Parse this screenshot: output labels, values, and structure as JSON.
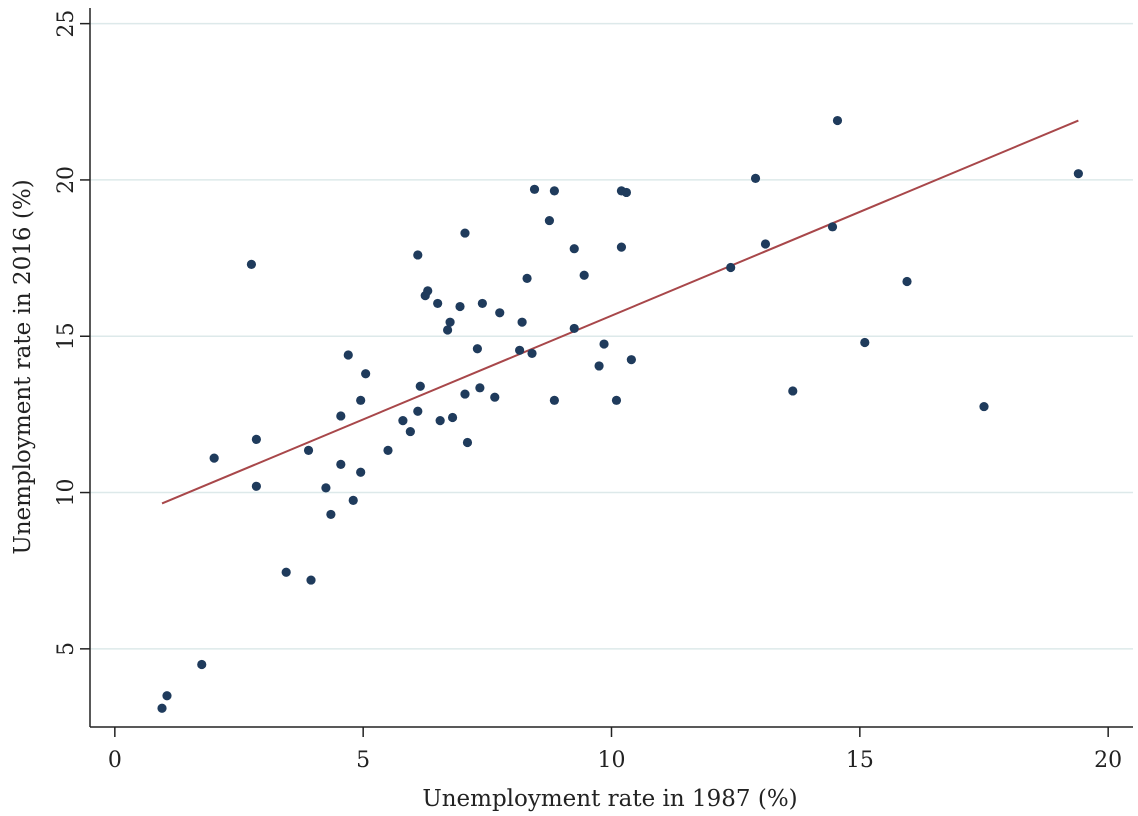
{
  "chart_data": {
    "type": "scatter",
    "xlabel": "Unemployment rate in 1987 (%)",
    "ylabel": "Unemployment rate in 2016 (%)",
    "xlim": [
      -0.5,
      20.5
    ],
    "ylim": [
      2.5,
      25.5
    ],
    "xticks": [
      0,
      5,
      10,
      15,
      20
    ],
    "yticks": [
      5,
      10,
      15,
      20,
      25
    ],
    "grid": "horizontal",
    "colors": {
      "points": "#1f3b5c",
      "fit_line": "#a8474a",
      "grid": "#dde9ea",
      "axis": "#222222"
    },
    "points": [
      [
        0.95,
        3.1
      ],
      [
        1.05,
        3.5
      ],
      [
        1.75,
        4.5
      ],
      [
        2.0,
        11.1
      ],
      [
        2.75,
        17.3
      ],
      [
        2.85,
        11.7
      ],
      [
        2.85,
        10.2
      ],
      [
        3.45,
        7.45
      ],
      [
        3.95,
        7.2
      ],
      [
        3.9,
        11.35
      ],
      [
        4.25,
        10.15
      ],
      [
        4.35,
        9.3
      ],
      [
        4.55,
        12.45
      ],
      [
        4.55,
        10.9
      ],
      [
        4.7,
        14.4
      ],
      [
        4.8,
        9.75
      ],
      [
        4.95,
        12.95
      ],
      [
        4.95,
        10.65
      ],
      [
        5.05,
        13.8
      ],
      [
        5.5,
        11.35
      ],
      [
        5.8,
        12.3
      ],
      [
        5.95,
        11.95
      ],
      [
        6.1,
        12.6
      ],
      [
        6.1,
        17.6
      ],
      [
        6.15,
        13.4
      ],
      [
        6.25,
        16.3
      ],
      [
        6.3,
        16.45
      ],
      [
        6.5,
        16.05
      ],
      [
        6.55,
        12.3
      ],
      [
        6.7,
        15.2
      ],
      [
        6.75,
        15.45
      ],
      [
        6.8,
        12.4
      ],
      [
        6.95,
        15.95
      ],
      [
        7.05,
        13.15
      ],
      [
        7.05,
        18.3
      ],
      [
        7.1,
        11.6
      ],
      [
        7.3,
        14.6
      ],
      [
        7.35,
        13.35
      ],
      [
        7.4,
        16.05
      ],
      [
        7.65,
        13.05
      ],
      [
        7.75,
        15.75
      ],
      [
        8.15,
        14.55
      ],
      [
        8.2,
        15.45
      ],
      [
        8.3,
        16.85
      ],
      [
        8.4,
        14.45
      ],
      [
        8.45,
        19.7
      ],
      [
        8.75,
        18.7
      ],
      [
        8.85,
        19.65
      ],
      [
        8.85,
        12.95
      ],
      [
        9.25,
        17.8
      ],
      [
        9.25,
        15.25
      ],
      [
        9.45,
        16.95
      ],
      [
        9.75,
        14.05
      ],
      [
        9.85,
        14.75
      ],
      [
        10.1,
        12.95
      ],
      [
        10.2,
        19.65
      ],
      [
        10.2,
        17.85
      ],
      [
        10.3,
        19.6
      ],
      [
        10.4,
        14.25
      ],
      [
        12.4,
        17.2
      ],
      [
        12.9,
        20.05
      ],
      [
        13.1,
        17.95
      ],
      [
        13.65,
        13.25
      ],
      [
        14.45,
        18.5
      ],
      [
        14.55,
        21.9
      ],
      [
        15.1,
        14.8
      ],
      [
        15.95,
        16.75
      ],
      [
        17.5,
        12.75
      ],
      [
        19.4,
        20.2
      ]
    ],
    "fit_line": {
      "x": [
        0.95,
        19.4
      ],
      "y": [
        9.65,
        21.9
      ]
    }
  }
}
